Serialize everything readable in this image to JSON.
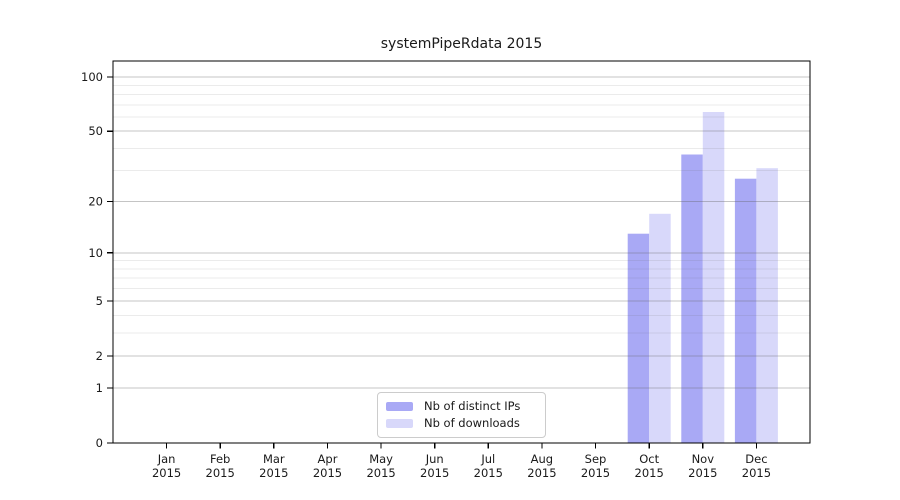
{
  "page": {
    "background": "#ffffff",
    "frame_color": "#000000"
  },
  "chart_data": {
    "type": "bar",
    "title": "systemPipeRdata 2015",
    "year_label": "2015",
    "categories": [
      "Jan",
      "Feb",
      "Mar",
      "Apr",
      "May",
      "Jun",
      "Jul",
      "Aug",
      "Sep",
      "Oct",
      "Nov",
      "Dec"
    ],
    "series": [
      {
        "name": "Nb of distinct IPs",
        "color": "#a9a9f5",
        "values": [
          0,
          0,
          0,
          0,
          0,
          0,
          0,
          0,
          0,
          13,
          37,
          27
        ]
      },
      {
        "name": "Nb of downloads",
        "color": "#d8d8fa",
        "values": [
          0,
          0,
          0,
          0,
          0,
          0,
          0,
          0,
          0,
          17,
          64,
          31
        ]
      }
    ],
    "xlabel": "",
    "ylabel": "",
    "y_axis": {
      "scale": "log1p",
      "major_ticks": [
        0,
        1,
        2,
        5,
        10,
        20,
        50,
        100
      ],
      "minor_gridlines": [
        3,
        4,
        6,
        7,
        8,
        9,
        30,
        40,
        60,
        70,
        80,
        90
      ],
      "ylim": [
        0,
        110
      ]
    },
    "grid": {
      "major_color": "rgba(100,100,100,0.38)",
      "minor_color": "rgba(100,100,100,0.13)"
    },
    "legend": {
      "position": "inside-bottom-center"
    }
  }
}
